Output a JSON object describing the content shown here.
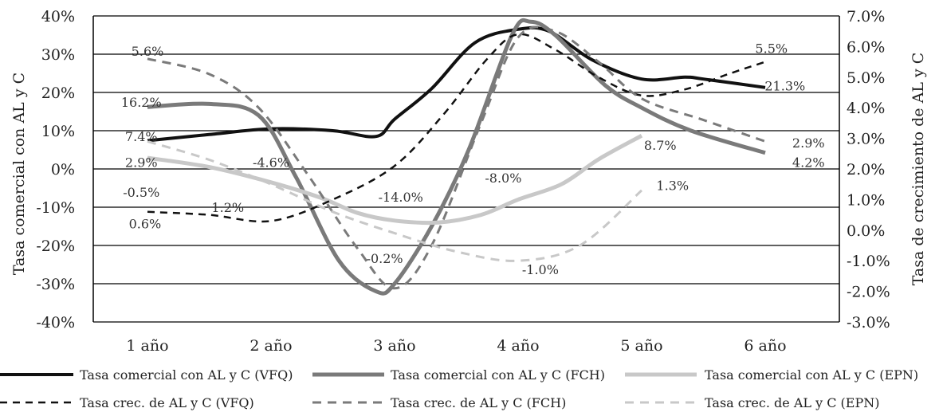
{
  "chart_data": {
    "type": "line",
    "title": "",
    "categories": [
      "1 año",
      "2 año",
      "3 año",
      "4 año",
      "5 año",
      "6 año"
    ],
    "y_left": {
      "label": "Tasa comercial con AL y C",
      "range": [
        -40,
        40
      ],
      "ticks": [
        "-40%",
        "-30%",
        "-20%",
        "-10%",
        "0%",
        "10%",
        "20%",
        "30%",
        "40%"
      ]
    },
    "y_right": {
      "label": "Tasa de crecimiento de AL y C",
      "range": [
        -3.0,
        7.0
      ],
      "ticks": [
        "-3.0%",
        "-2.0%",
        "-1.0%",
        "0.0%",
        "1.0%",
        "2.0%",
        "3.0%",
        "4.0%",
        "5.0%",
        "6.0%",
        "7.0%"
      ]
    },
    "grid": "horizontal",
    "legend_position": "bottom",
    "series": [
      {
        "name": "Tasa comercial con AL y C (VFQ)",
        "axis": "left",
        "style": "solid",
        "color": "#111111",
        "width": 4,
        "x": [
          1,
          1.5,
          2,
          2.5,
          2.85,
          3,
          3.3,
          3.65,
          4,
          4.25,
          4.6,
          5,
          5.35,
          5.5,
          6
        ],
        "values": [
          7.4,
          9.0,
          10.5,
          10.0,
          8.5,
          13.0,
          21.0,
          33.0,
          36.5,
          36.0,
          28.5,
          23.5,
          24.0,
          23.5,
          21.3
        ]
      },
      {
        "name": "Tasa comercial con AL y C (FCH)",
        "axis": "left",
        "style": "solid",
        "color": "#7a7a7a",
        "width": 5,
        "x": [
          1,
          1.5,
          1.9,
          2.2,
          2.55,
          2.85,
          3.0,
          3.3,
          3.6,
          3.95,
          4.1,
          4.3,
          4.7,
          5,
          5.4,
          6
        ],
        "values": [
          16.2,
          17.0,
          14.0,
          -2.0,
          -24.0,
          -32.0,
          -30.0,
          -15.0,
          5.0,
          35.0,
          38.5,
          35.0,
          22.0,
          16.0,
          10.0,
          4.2
        ]
      },
      {
        "name": "Tasa comercial con AL y C (EPN)",
        "axis": "left",
        "style": "solid",
        "color": "#c8c8c8",
        "width": 5,
        "x": [
          1,
          1.5,
          2,
          2.4,
          2.7,
          3.0,
          3.35,
          3.7,
          4.0,
          4.35,
          4.65,
          5
        ],
        "values": [
          2.9,
          0.5,
          -3.5,
          -7.5,
          -11.5,
          -13.5,
          -14.0,
          -12.0,
          -8.0,
          -4.0,
          2.5,
          8.7
        ]
      },
      {
        "name": "Tasa crec. de AL y C (VFQ)",
        "axis": "right",
        "style": "dashed",
        "color": "#111111",
        "width": 2.5,
        "x": [
          1,
          1.5,
          2,
          2.5,
          3,
          3.4,
          3.75,
          4,
          4.3,
          4.65,
          5,
          5.35,
          5.7,
          6
        ],
        "values": [
          0.6,
          0.5,
          0.3,
          1.0,
          2.1,
          3.8,
          5.6,
          6.4,
          5.9,
          5.0,
          4.4,
          4.6,
          5.1,
          5.5
        ]
      },
      {
        "name": "Tasa crec. de AL y C (FCH)",
        "axis": "right",
        "style": "dashed",
        "color": "#7a7a7a",
        "width": 3,
        "x": [
          1,
          1.5,
          1.9,
          2.3,
          2.7,
          3.0,
          3.3,
          3.7,
          4.0,
          4.3,
          4.65,
          5,
          5.5,
          6
        ],
        "values": [
          5.6,
          5.1,
          4.0,
          1.8,
          -0.6,
          -1.9,
          -0.5,
          3.5,
          6.3,
          6.5,
          5.5,
          4.3,
          3.6,
          2.9
        ]
      },
      {
        "name": "Tasa crec. de AL y C (EPN)",
        "axis": "right",
        "style": "dashed",
        "color": "#c8c8c8",
        "width": 3,
        "x": [
          1,
          1.5,
          2,
          2.5,
          3,
          3.5,
          4,
          4.5,
          5
        ],
        "values": [
          2.9,
          2.3,
          1.5,
          0.6,
          -0.1,
          -0.7,
          -1.0,
          -0.5,
          1.3
        ]
      }
    ],
    "annotations": [
      {
        "text": "5.6%",
        "x": 1.0,
        "y": 5.85,
        "axis": "right"
      },
      {
        "text": "16.2%",
        "x": 0.95,
        "y": 17.5,
        "axis": "left"
      },
      {
        "text": "7.4%",
        "x": 0.95,
        "y": 8.5,
        "axis": "left"
      },
      {
        "text": "2.9%",
        "x": 0.95,
        "y": 1.8,
        "axis": "left"
      },
      {
        "text": "-0.5%",
        "x": 0.95,
        "y": -6.0,
        "axis": "left"
      },
      {
        "text": "1.2%",
        "x": 1.65,
        "y": -10.0,
        "axis": "left"
      },
      {
        "text": "0.6%",
        "x": 0.98,
        "y": -14.3,
        "axis": "left"
      },
      {
        "text": "-4.6%",
        "x": 2.0,
        "y": 1.8,
        "axis": "left"
      },
      {
        "text": "-14.0%",
        "x": 3.05,
        "y": -7.3,
        "axis": "left"
      },
      {
        "text": "-0.2%",
        "x": 2.92,
        "y": -23.3,
        "axis": "left"
      },
      {
        "text": "-8.0%",
        "x": 3.88,
        "y": -2.3,
        "axis": "left"
      },
      {
        "text": "-1.0%",
        "x": 4.18,
        "y": -26.3,
        "axis": "left"
      },
      {
        "text": "8.7%",
        "x": 5.15,
        "y": 6.3,
        "axis": "left"
      },
      {
        "text": "1.3%",
        "x": 5.25,
        "y": -4.3,
        "axis": "left"
      },
      {
        "text": "5.5%",
        "x": 6.05,
        "y": 31.6,
        "axis": "left"
      },
      {
        "text": "21.3%",
        "x": 6.16,
        "y": 21.8,
        "axis": "left"
      },
      {
        "text": "2.9%",
        "x": 6.35,
        "y": 6.9,
        "axis": "left"
      },
      {
        "text": "4.2%",
        "x": 6.35,
        "y": 1.8,
        "axis": "left"
      }
    ]
  }
}
